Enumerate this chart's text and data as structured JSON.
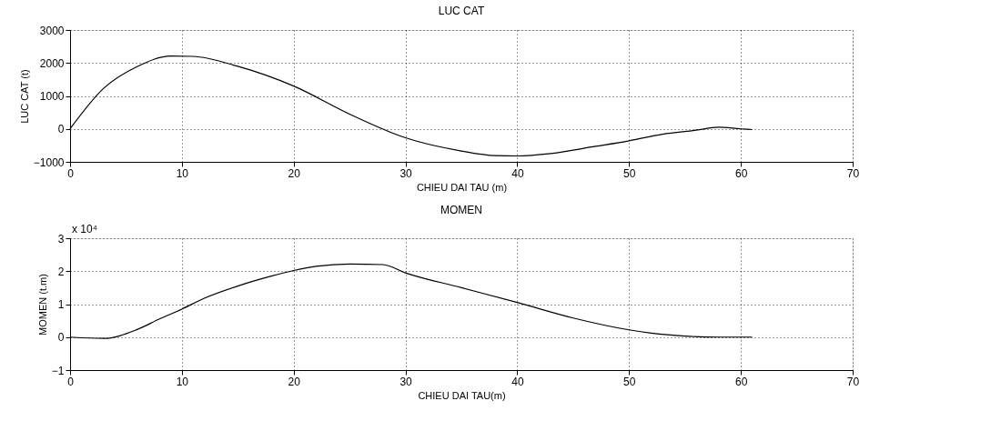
{
  "chart_data": [
    {
      "type": "line",
      "title": "LUC CAT",
      "xlabel": "CHIEU DAI TAU (m)",
      "ylabel": "LUC CAT (t)",
      "x": [
        0,
        3,
        6,
        9,
        11,
        15,
        20,
        25,
        30,
        35,
        38,
        40,
        43,
        47,
        50,
        53,
        56,
        58,
        60,
        61
      ],
      "series": [
        {
          "color": "#000000",
          "values": [
            0,
            1230,
            1890,
            2210,
            2200,
            1900,
            1300,
            450,
            -270,
            -670,
            -810,
            -820,
            -750,
            -530,
            -360,
            -160,
            -40,
            50,
            0,
            -20
          ]
        }
      ],
      "xlim": [
        0,
        70
      ],
      "xticks": [
        0,
        10,
        20,
        30,
        40,
        50,
        60,
        70
      ],
      "ylim": [
        -1000,
        3000
      ],
      "yticks": [
        -1000,
        0,
        1000,
        2000,
        3000
      ],
      "grid": true
    },
    {
      "type": "line",
      "title": "MOMEN",
      "xlabel": "CHIEU DAI TAU(m)",
      "ylabel": "MOMEN (t.m)",
      "annotations": [
        "x 10⁴"
      ],
      "x": [
        0,
        3,
        6,
        8,
        10,
        12,
        15,
        18,
        20,
        22,
        25,
        28,
        30,
        35,
        40,
        45,
        50,
        52,
        55,
        58,
        61
      ],
      "series": [
        {
          "color": "#000000",
          "values": [
            0,
            -0.04,
            0.23,
            0.55,
            0.85,
            1.18,
            1.55,
            1.85,
            2.02,
            2.15,
            2.22,
            2.2,
            1.95,
            1.5,
            1.05,
            0.58,
            0.22,
            0.12,
            0.03,
            0,
            0
          ]
        }
      ],
      "xlim": [
        0,
        70
      ],
      "xticks": [
        0,
        10,
        20,
        30,
        40,
        50,
        60,
        70
      ],
      "ylim": [
        -1,
        3
      ],
      "yticks": [
        -1,
        0,
        1,
        2,
        3
      ],
      "grid": true
    }
  ]
}
